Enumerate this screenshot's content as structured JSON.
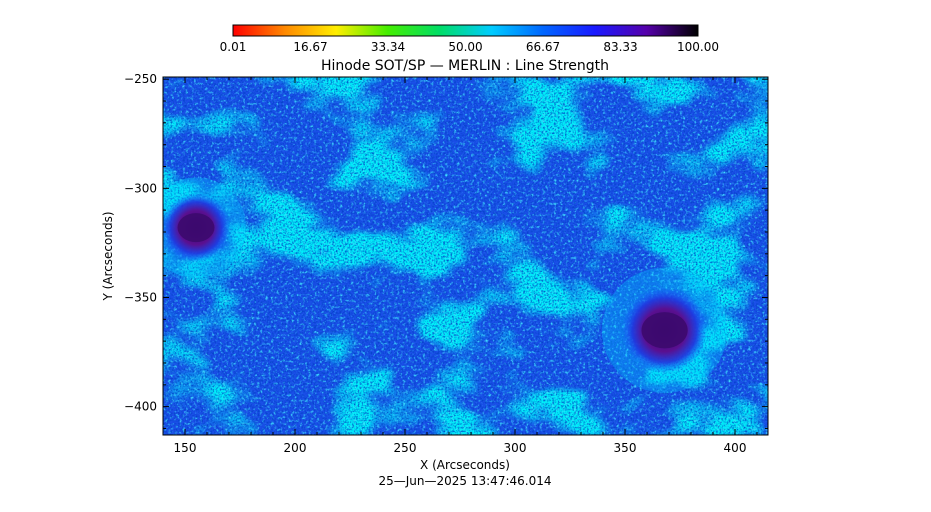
{
  "chart_data": {
    "type": "heatmap",
    "title": "Hinode SOT/SP — MERLIN : Line Strength",
    "xlabel": "X (Arcseconds)",
    "ylabel": "Y (Arcseconds)",
    "xlim": [
      140,
      415
    ],
    "ylim": [
      -413,
      -249
    ],
    "x_ticks": [
      150,
      200,
      250,
      300,
      350,
      400
    ],
    "y_ticks": [
      -250,
      -300,
      -350,
      -400
    ],
    "colorbar": {
      "ticks": [
        "0.01",
        "16.67",
        "33.34",
        "50.00",
        "66.67",
        "83.33",
        "100.00"
      ],
      "range": [
        0.01,
        100.0
      ],
      "colors": [
        "#ff0000",
        "#ff8800",
        "#ffee00",
        "#44ee00",
        "#00dd66",
        "#00ccff",
        "#0066ff",
        "#1a1aff",
        "#5500aa",
        "#000000"
      ]
    },
    "features": [
      {
        "name": "sunspot",
        "x": 155,
        "y": -318,
        "radius": 12
      },
      {
        "name": "sunspot",
        "x": 368,
        "y": -365,
        "radius": 15
      }
    ],
    "timestamp": "25—Jun—2025 13:47:46.014"
  }
}
